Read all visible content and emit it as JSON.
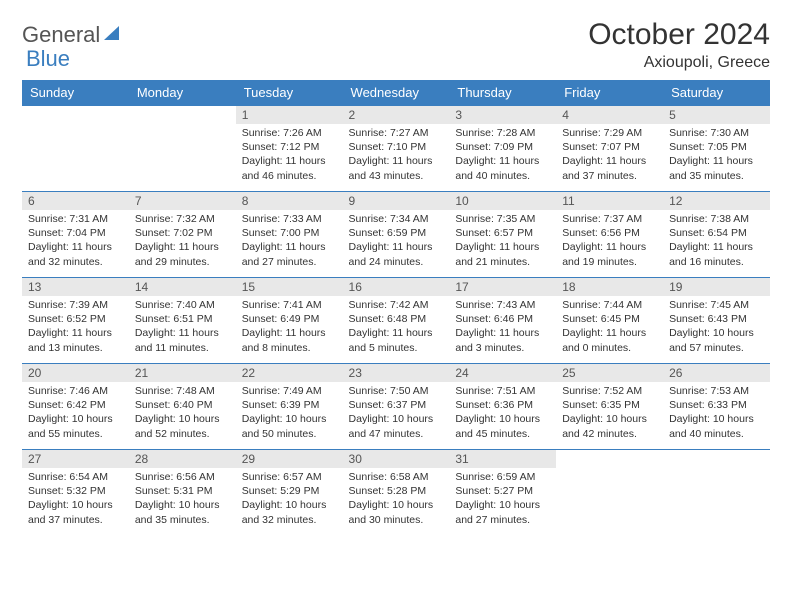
{
  "logo": {
    "textGeneral": "General",
    "textBlue": "Blue"
  },
  "title": "October 2024",
  "location": "Axioupoli, Greece",
  "colors": {
    "headerBg": "#3a7ebf",
    "headerText": "#ffffff",
    "dayNumBg": "#e8e8e8",
    "border": "#3a7ebf",
    "bodyText": "#333333"
  },
  "weekdays": [
    "Sunday",
    "Monday",
    "Tuesday",
    "Wednesday",
    "Thursday",
    "Friday",
    "Saturday"
  ],
  "weeks": [
    [
      {
        "n": "",
        "sr": "",
        "ss": "",
        "dl": ""
      },
      {
        "n": "",
        "sr": "",
        "ss": "",
        "dl": ""
      },
      {
        "n": "1",
        "sr": "Sunrise: 7:26 AM",
        "ss": "Sunset: 7:12 PM",
        "dl": "Daylight: 11 hours and 46 minutes."
      },
      {
        "n": "2",
        "sr": "Sunrise: 7:27 AM",
        "ss": "Sunset: 7:10 PM",
        "dl": "Daylight: 11 hours and 43 minutes."
      },
      {
        "n": "3",
        "sr": "Sunrise: 7:28 AM",
        "ss": "Sunset: 7:09 PM",
        "dl": "Daylight: 11 hours and 40 minutes."
      },
      {
        "n": "4",
        "sr": "Sunrise: 7:29 AM",
        "ss": "Sunset: 7:07 PM",
        "dl": "Daylight: 11 hours and 37 minutes."
      },
      {
        "n": "5",
        "sr": "Sunrise: 7:30 AM",
        "ss": "Sunset: 7:05 PM",
        "dl": "Daylight: 11 hours and 35 minutes."
      }
    ],
    [
      {
        "n": "6",
        "sr": "Sunrise: 7:31 AM",
        "ss": "Sunset: 7:04 PM",
        "dl": "Daylight: 11 hours and 32 minutes."
      },
      {
        "n": "7",
        "sr": "Sunrise: 7:32 AM",
        "ss": "Sunset: 7:02 PM",
        "dl": "Daylight: 11 hours and 29 minutes."
      },
      {
        "n": "8",
        "sr": "Sunrise: 7:33 AM",
        "ss": "Sunset: 7:00 PM",
        "dl": "Daylight: 11 hours and 27 minutes."
      },
      {
        "n": "9",
        "sr": "Sunrise: 7:34 AM",
        "ss": "Sunset: 6:59 PM",
        "dl": "Daylight: 11 hours and 24 minutes."
      },
      {
        "n": "10",
        "sr": "Sunrise: 7:35 AM",
        "ss": "Sunset: 6:57 PM",
        "dl": "Daylight: 11 hours and 21 minutes."
      },
      {
        "n": "11",
        "sr": "Sunrise: 7:37 AM",
        "ss": "Sunset: 6:56 PM",
        "dl": "Daylight: 11 hours and 19 minutes."
      },
      {
        "n": "12",
        "sr": "Sunrise: 7:38 AM",
        "ss": "Sunset: 6:54 PM",
        "dl": "Daylight: 11 hours and 16 minutes."
      }
    ],
    [
      {
        "n": "13",
        "sr": "Sunrise: 7:39 AM",
        "ss": "Sunset: 6:52 PM",
        "dl": "Daylight: 11 hours and 13 minutes."
      },
      {
        "n": "14",
        "sr": "Sunrise: 7:40 AM",
        "ss": "Sunset: 6:51 PM",
        "dl": "Daylight: 11 hours and 11 minutes."
      },
      {
        "n": "15",
        "sr": "Sunrise: 7:41 AM",
        "ss": "Sunset: 6:49 PM",
        "dl": "Daylight: 11 hours and 8 minutes."
      },
      {
        "n": "16",
        "sr": "Sunrise: 7:42 AM",
        "ss": "Sunset: 6:48 PM",
        "dl": "Daylight: 11 hours and 5 minutes."
      },
      {
        "n": "17",
        "sr": "Sunrise: 7:43 AM",
        "ss": "Sunset: 6:46 PM",
        "dl": "Daylight: 11 hours and 3 minutes."
      },
      {
        "n": "18",
        "sr": "Sunrise: 7:44 AM",
        "ss": "Sunset: 6:45 PM",
        "dl": "Daylight: 11 hours and 0 minutes."
      },
      {
        "n": "19",
        "sr": "Sunrise: 7:45 AM",
        "ss": "Sunset: 6:43 PM",
        "dl": "Daylight: 10 hours and 57 minutes."
      }
    ],
    [
      {
        "n": "20",
        "sr": "Sunrise: 7:46 AM",
        "ss": "Sunset: 6:42 PM",
        "dl": "Daylight: 10 hours and 55 minutes."
      },
      {
        "n": "21",
        "sr": "Sunrise: 7:48 AM",
        "ss": "Sunset: 6:40 PM",
        "dl": "Daylight: 10 hours and 52 minutes."
      },
      {
        "n": "22",
        "sr": "Sunrise: 7:49 AM",
        "ss": "Sunset: 6:39 PM",
        "dl": "Daylight: 10 hours and 50 minutes."
      },
      {
        "n": "23",
        "sr": "Sunrise: 7:50 AM",
        "ss": "Sunset: 6:37 PM",
        "dl": "Daylight: 10 hours and 47 minutes."
      },
      {
        "n": "24",
        "sr": "Sunrise: 7:51 AM",
        "ss": "Sunset: 6:36 PM",
        "dl": "Daylight: 10 hours and 45 minutes."
      },
      {
        "n": "25",
        "sr": "Sunrise: 7:52 AM",
        "ss": "Sunset: 6:35 PM",
        "dl": "Daylight: 10 hours and 42 minutes."
      },
      {
        "n": "26",
        "sr": "Sunrise: 7:53 AM",
        "ss": "Sunset: 6:33 PM",
        "dl": "Daylight: 10 hours and 40 minutes."
      }
    ],
    [
      {
        "n": "27",
        "sr": "Sunrise: 6:54 AM",
        "ss": "Sunset: 5:32 PM",
        "dl": "Daylight: 10 hours and 37 minutes."
      },
      {
        "n": "28",
        "sr": "Sunrise: 6:56 AM",
        "ss": "Sunset: 5:31 PM",
        "dl": "Daylight: 10 hours and 35 minutes."
      },
      {
        "n": "29",
        "sr": "Sunrise: 6:57 AM",
        "ss": "Sunset: 5:29 PM",
        "dl": "Daylight: 10 hours and 32 minutes."
      },
      {
        "n": "30",
        "sr": "Sunrise: 6:58 AM",
        "ss": "Sunset: 5:28 PM",
        "dl": "Daylight: 10 hours and 30 minutes."
      },
      {
        "n": "31",
        "sr": "Sunrise: 6:59 AM",
        "ss": "Sunset: 5:27 PM",
        "dl": "Daylight: 10 hours and 27 minutes."
      },
      {
        "n": "",
        "sr": "",
        "ss": "",
        "dl": ""
      },
      {
        "n": "",
        "sr": "",
        "ss": "",
        "dl": ""
      }
    ]
  ]
}
